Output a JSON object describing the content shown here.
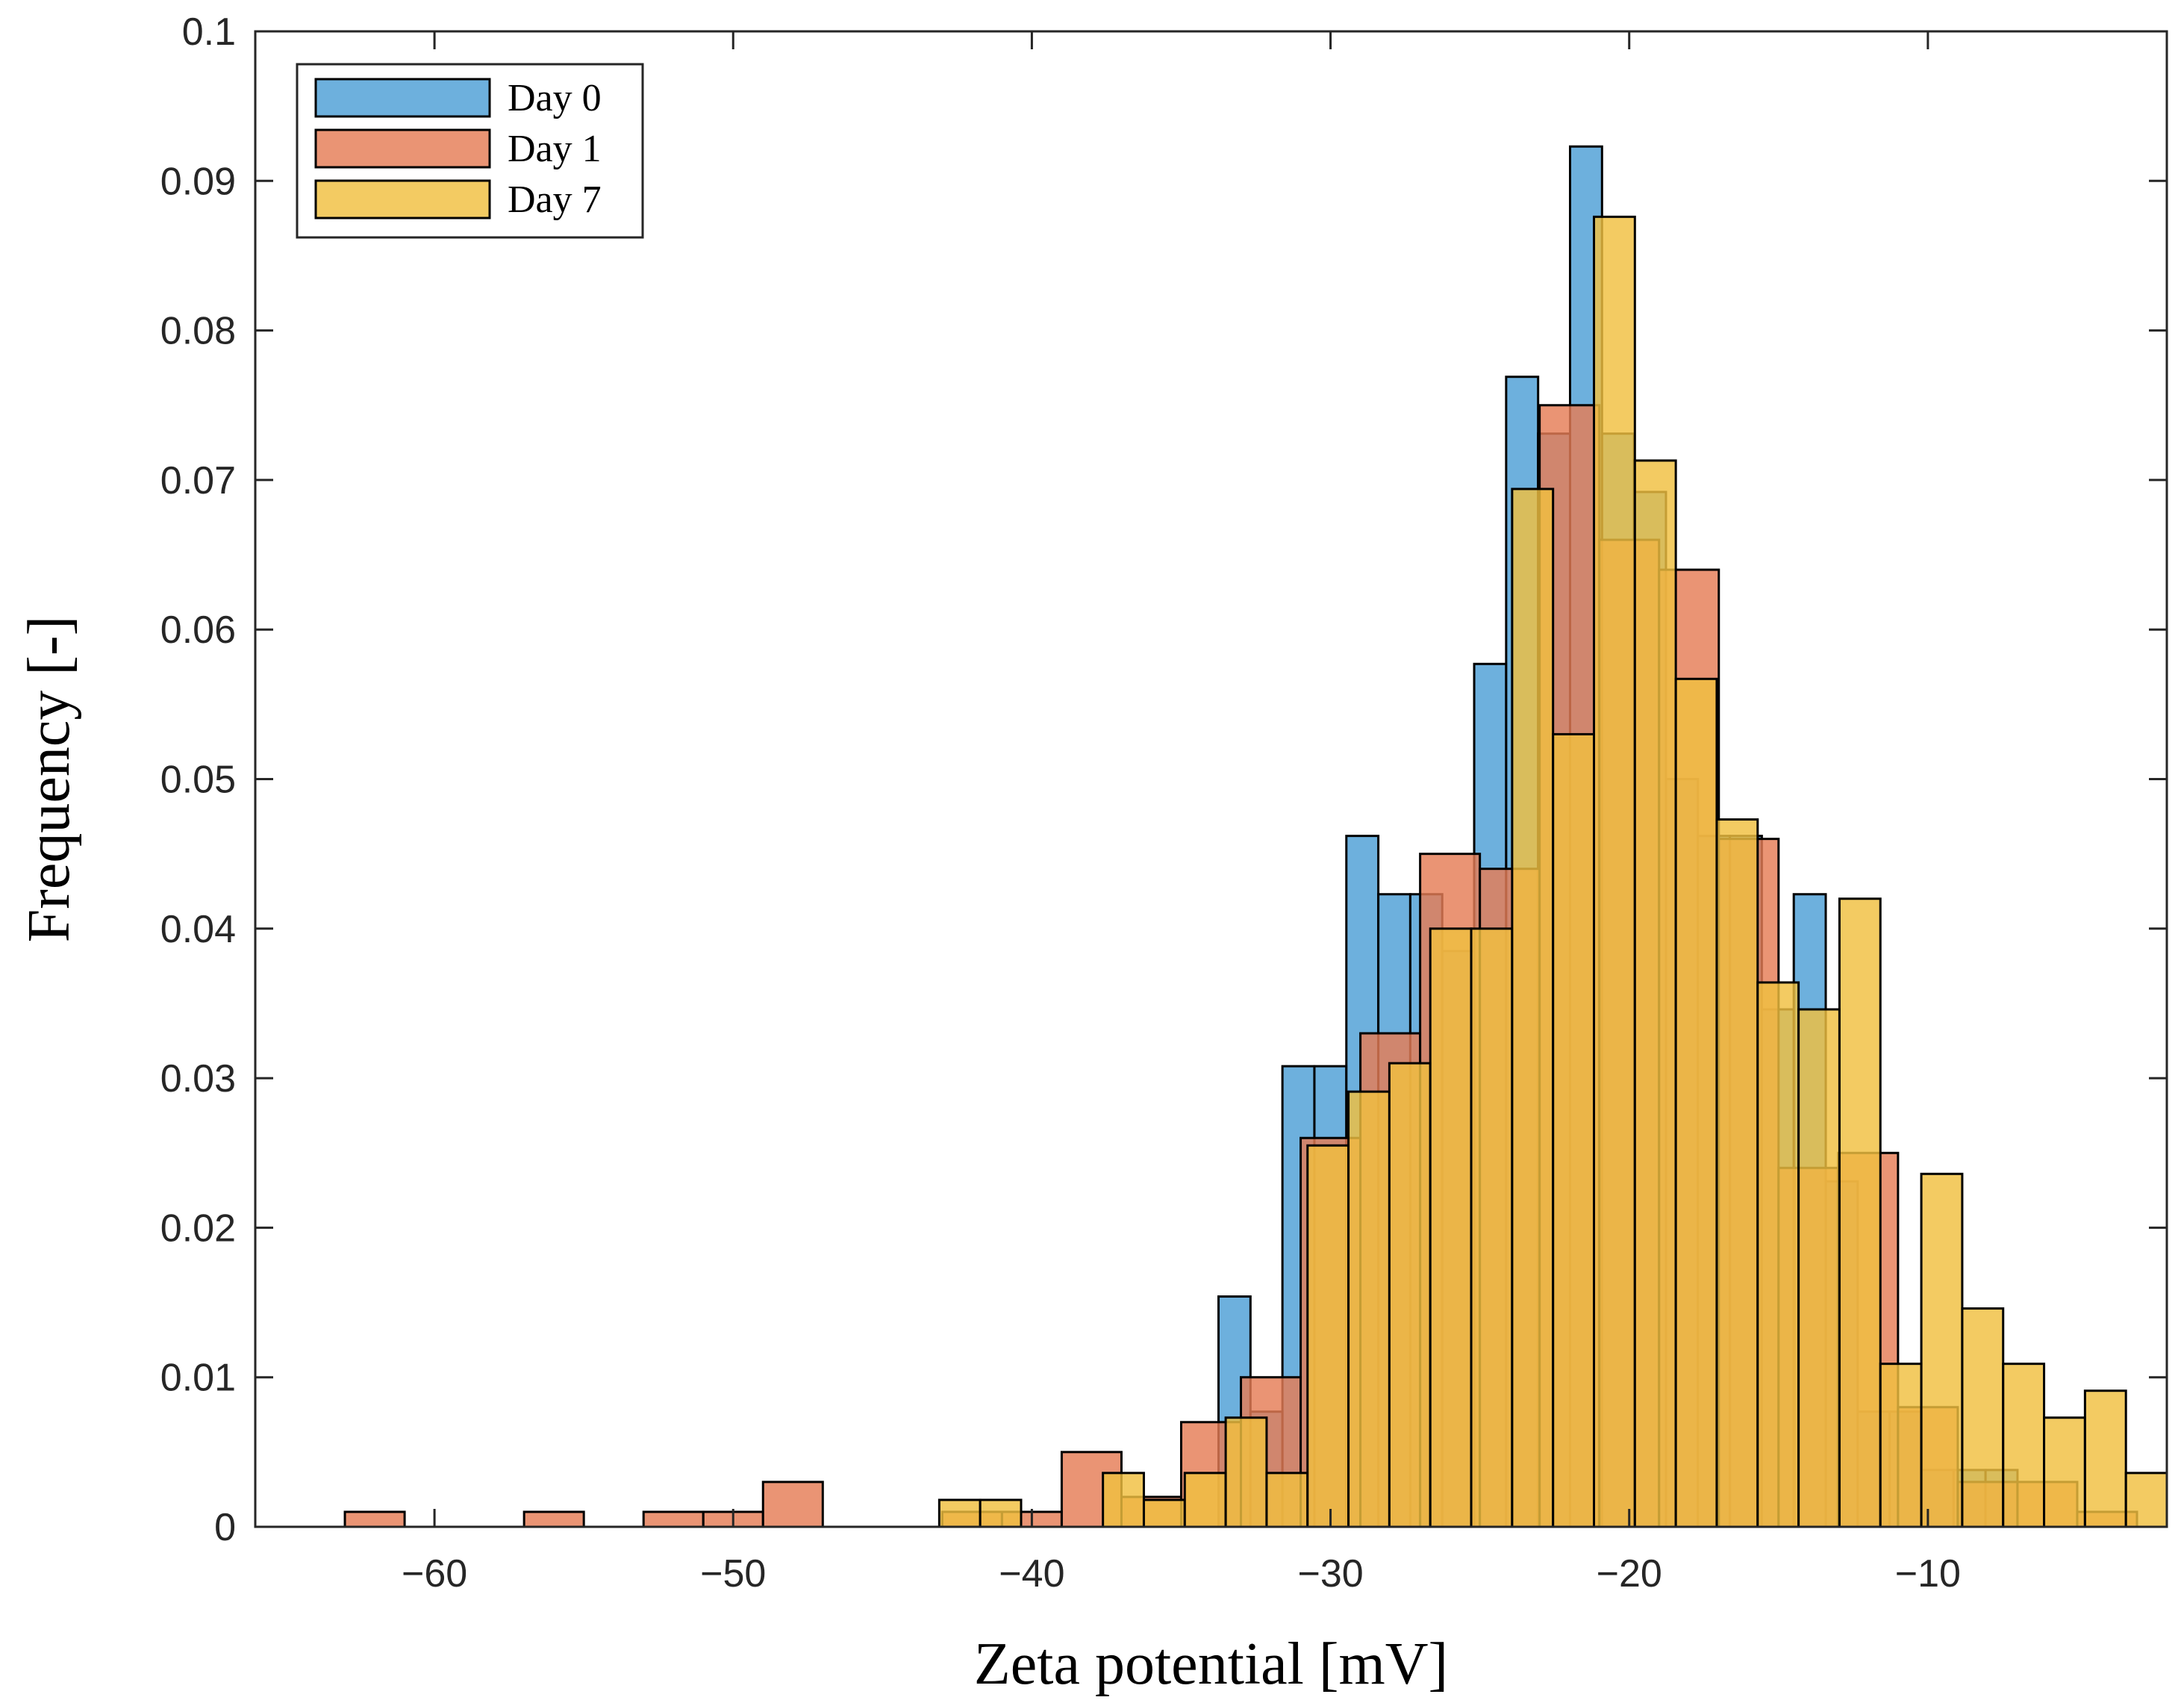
{
  "chart_data": {
    "type": "histogram",
    "xlabel": "Zeta potential [mV]",
    "ylabel": "Frequency [-]",
    "xlim": [
      -66,
      -2
    ],
    "ylim": [
      0,
      0.1
    ],
    "xticks": [
      -60,
      -50,
      -40,
      -30,
      -20,
      -10
    ],
    "xtick_labels": [
      "−60",
      "−50",
      "−40",
      "−30",
      "−20",
      "−10"
    ],
    "yticks": [
      0,
      0.01,
      0.02,
      0.03,
      0.04,
      0.05,
      0.06,
      0.07,
      0.08,
      0.09,
      0.1
    ],
    "ytick_labels": [
      "0",
      "0.01",
      "0.02",
      "0.03",
      "0.04",
      "0.05",
      "0.06",
      "0.07",
      "0.08",
      "0.09",
      "0.1"
    ],
    "legend_position": "top-left",
    "series": [
      {
        "name": "Day 0",
        "legend_label": "Day  0",
        "color": "#4d9fd6",
        "bin_width": 1.07,
        "bins": [
          {
            "left": -33.75,
            "value": 0.0154
          },
          {
            "left": -32.68,
            "value": 0.0077
          },
          {
            "left": -31.61,
            "value": 0.0308
          },
          {
            "left": -30.54,
            "value": 0.0308
          },
          {
            "left": -29.47,
            "value": 0.0462
          },
          {
            "left": -28.4,
            "value": 0.0423
          },
          {
            "left": -27.33,
            "value": 0.0423
          },
          {
            "left": -26.26,
            "value": 0.0385
          },
          {
            "left": -25.19,
            "value": 0.0577
          },
          {
            "left": -24.12,
            "value": 0.0769
          },
          {
            "left": -23.05,
            "value": 0.0731
          },
          {
            "left": -21.98,
            "value": 0.0923
          },
          {
            "left": -20.91,
            "value": 0.0731
          },
          {
            "left": -19.84,
            "value": 0.0692
          },
          {
            "left": -18.77,
            "value": 0.05
          },
          {
            "left": -17.7,
            "value": 0.0462
          },
          {
            "left": -16.63,
            "value": 0.0462
          },
          {
            "left": -15.56,
            "value": 0.0346
          },
          {
            "left": -14.49,
            "value": 0.0423
          },
          {
            "left": -13.42,
            "value": 0.0231
          },
          {
            "left": -12.35,
            "value": 0.0077
          },
          {
            "left": -11.28,
            "value": 0.0077
          },
          {
            "left": -10.21,
            "value": 0.0038
          },
          {
            "left": -9.14,
            "value": 0.0038
          },
          {
            "left": -8.07,
            "value": 0.0038
          }
        ]
      },
      {
        "name": "Day 1",
        "legend_label": "Day  1",
        "color": "#e57c55",
        "bin_width": 2.0,
        "bins": [
          {
            "left": -63.0,
            "value": 0.001
          },
          {
            "left": -57.0,
            "value": 0.001
          },
          {
            "left": -53.0,
            "value": 0.001
          },
          {
            "left": -51.0,
            "value": 0.001
          },
          {
            "left": -49.0,
            "value": 0.003
          },
          {
            "left": -43.0,
            "value": 0.001
          },
          {
            "left": -41.0,
            "value": 0.001
          },
          {
            "left": -39.0,
            "value": 0.005
          },
          {
            "left": -37.0,
            "value": 0.002
          },
          {
            "left": -35.0,
            "value": 0.007
          },
          {
            "left": -33.0,
            "value": 0.01
          },
          {
            "left": -31.0,
            "value": 0.026
          },
          {
            "left": -29.0,
            "value": 0.033
          },
          {
            "left": -27.0,
            "value": 0.045
          },
          {
            "left": -25.0,
            "value": 0.044
          },
          {
            "left": -23.0,
            "value": 0.075
          },
          {
            "left": -21.0,
            "value": 0.066
          },
          {
            "left": -19.0,
            "value": 0.064
          },
          {
            "left": -17.0,
            "value": 0.046
          },
          {
            "left": -15.0,
            "value": 0.024
          },
          {
            "left": -13.0,
            "value": 0.025
          },
          {
            "left": -11.0,
            "value": 0.008
          },
          {
            "left": -9.0,
            "value": 0.003
          },
          {
            "left": -7.0,
            "value": 0.003
          },
          {
            "left": -5.0,
            "value": 0.001
          }
        ]
      },
      {
        "name": "Day 7",
        "legend_label": "Day  7",
        "color": "#f0c040",
        "bin_width": 1.37,
        "bins": [
          {
            "left": -43.1,
            "value": 0.0018
          },
          {
            "left": -41.73,
            "value": 0.0018
          },
          {
            "left": -37.62,
            "value": 0.0036
          },
          {
            "left": -36.25,
            "value": 0.0018
          },
          {
            "left": -34.88,
            "value": 0.0036
          },
          {
            "left": -33.51,
            "value": 0.0073
          },
          {
            "left": -32.14,
            "value": 0.0036
          },
          {
            "left": -30.77,
            "value": 0.0255
          },
          {
            "left": -29.4,
            "value": 0.0291
          },
          {
            "left": -28.03,
            "value": 0.031
          },
          {
            "left": -26.66,
            "value": 0.04
          },
          {
            "left": -25.29,
            "value": 0.04
          },
          {
            "left": -23.92,
            "value": 0.0694
          },
          {
            "left": -22.55,
            "value": 0.053
          },
          {
            "left": -21.18,
            "value": 0.0876
          },
          {
            "left": -19.81,
            "value": 0.0713
          },
          {
            "left": -18.44,
            "value": 0.0567
          },
          {
            "left": -17.07,
            "value": 0.0473
          },
          {
            "left": -15.7,
            "value": 0.0364
          },
          {
            "left": -14.33,
            "value": 0.0346
          },
          {
            "left": -12.96,
            "value": 0.042
          },
          {
            "left": -11.59,
            "value": 0.0109
          },
          {
            "left": -10.22,
            "value": 0.0236
          },
          {
            "left": -8.85,
            "value": 0.0146
          },
          {
            "left": -7.48,
            "value": 0.0109
          },
          {
            "left": -6.11,
            "value": 0.0073
          },
          {
            "left": -4.74,
            "value": 0.0091
          },
          {
            "left": -3.37,
            "value": 0.0036
          }
        ]
      }
    ]
  }
}
